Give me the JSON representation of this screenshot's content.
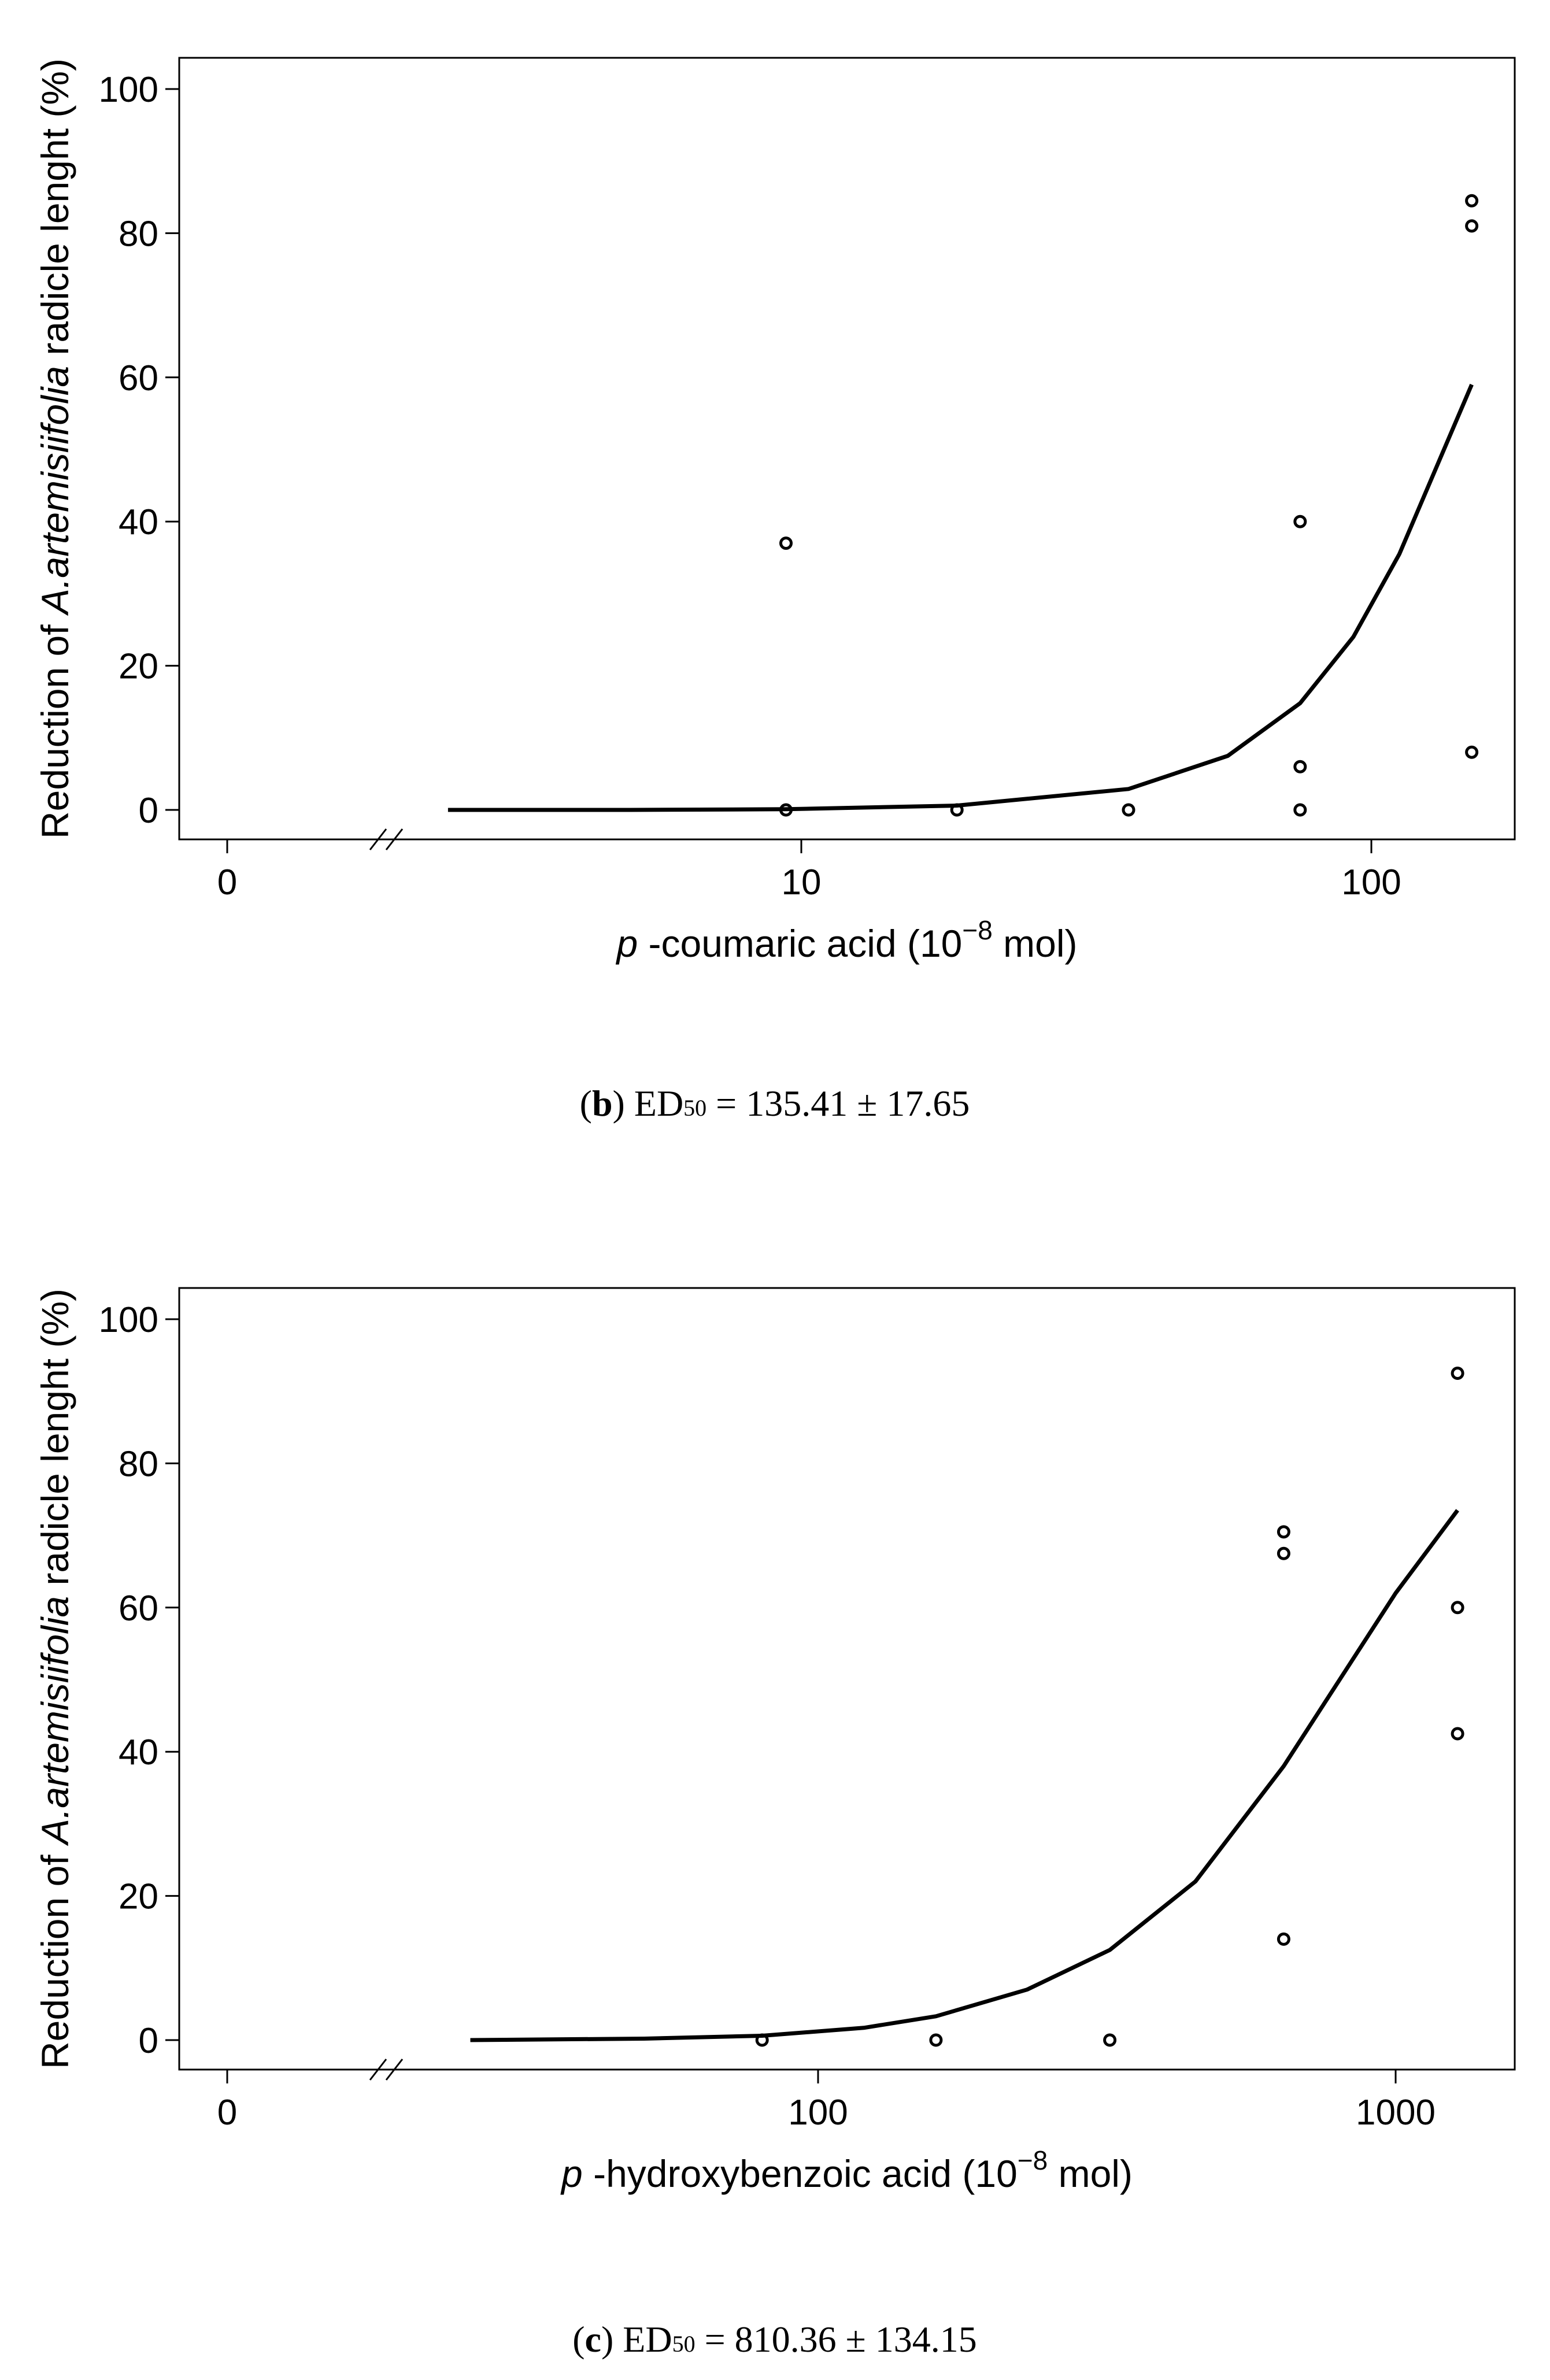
{
  "chart_data": [
    {
      "id": "b",
      "type": "scatter",
      "x_scale": "log",
      "xlabel": {
        "italic_prefix": "p",
        "text": " -coumaric acid (10",
        "exponent": "−8",
        "suffix": " mol)"
      },
      "ylabel": {
        "prefix": "Reduction of ",
        "species": "A.artemisiifolia",
        "suffix": " radicle lenght (%)"
      },
      "x_ticks": [
        {
          "label": "0",
          "value": null
        },
        {
          "label": "10",
          "value": 10
        },
        {
          "label": "100",
          "value": 100
        }
      ],
      "y_ticks": [
        0,
        20,
        40,
        60,
        80,
        100
      ],
      "xlim": [
        2.0,
        150
      ],
      "ylim": [
        0,
        100
      ],
      "axis_break": true,
      "points": [
        {
          "x": 9.4,
          "y": 37
        },
        {
          "x": 9.4,
          "y": 0
        },
        {
          "x": 18.75,
          "y": 0
        },
        {
          "x": 37.5,
          "y": 0
        },
        {
          "x": 75,
          "y": 40
        },
        {
          "x": 75,
          "y": 6
        },
        {
          "x": 75,
          "y": 0
        },
        {
          "x": 150,
          "y": 84.5
        },
        {
          "x": 150,
          "y": 81
        },
        {
          "x": 150,
          "y": 8
        }
      ],
      "curve": {
        "model": "log-logistic",
        "x_start": 2.4,
        "x_end": 150,
        "points": [
          [
            2.4,
            0
          ],
          [
            5,
            0
          ],
          [
            9.4,
            0.1
          ],
          [
            18.75,
            0.6
          ],
          [
            37.5,
            2.9
          ],
          [
            56,
            7.5
          ],
          [
            75,
            14.8
          ],
          [
            93,
            24
          ],
          [
            112,
            35.5
          ],
          [
            130,
            47.5
          ],
          [
            150,
            59
          ]
        ]
      },
      "caption": {
        "letter": "b",
        "ed_label": "ED",
        "ed_sub": "50",
        "text": " = 135.41 ± 17.65"
      }
    },
    {
      "id": "c",
      "type": "scatter",
      "x_scale": "log",
      "xlabel": {
        "italic_prefix": "p",
        "text": " -hydroxybenzoic acid (10",
        "exponent": "−8",
        "suffix": " mol)"
      },
      "ylabel": {
        "prefix": "Reduction of ",
        "species": "A.artemisiifolia",
        "suffix": " radicle lenght (%)"
      },
      "x_ticks": [
        {
          "label": "0",
          "value": null
        },
        {
          "label": "100",
          "value": 100
        },
        {
          "label": "1000",
          "value": 1000
        }
      ],
      "y_ticks": [
        0,
        20,
        40,
        60,
        80,
        100
      ],
      "xlim": [
        20,
        1280
      ],
      "ylim": [
        0,
        100
      ],
      "axis_break": true,
      "points": [
        {
          "x": 80,
          "y": 0
        },
        {
          "x": 160,
          "y": 0
        },
        {
          "x": 320,
          "y": 0
        },
        {
          "x": 640,
          "y": 70.5
        },
        {
          "x": 640,
          "y": 67.5
        },
        {
          "x": 640,
          "y": 14
        },
        {
          "x": 1280,
          "y": 92.5
        },
        {
          "x": 1280,
          "y": 60
        },
        {
          "x": 1280,
          "y": 42.5
        }
      ],
      "curve": {
        "model": "log-logistic",
        "x_start": 25,
        "x_end": 1280,
        "points": [
          [
            25,
            0
          ],
          [
            50,
            0.2
          ],
          [
            80,
            0.6
          ],
          [
            120,
            1.7
          ],
          [
            160,
            3.3
          ],
          [
            230,
            7
          ],
          [
            320,
            12.5
          ],
          [
            450,
            22
          ],
          [
            640,
            38
          ],
          [
            800,
            50
          ],
          [
            1000,
            62
          ],
          [
            1280,
            73.5
          ]
        ]
      },
      "caption": {
        "letter": "c",
        "ed_label": "ED",
        "ed_sub": "50",
        "text": " = 810.36 ± 134.15"
      }
    }
  ]
}
